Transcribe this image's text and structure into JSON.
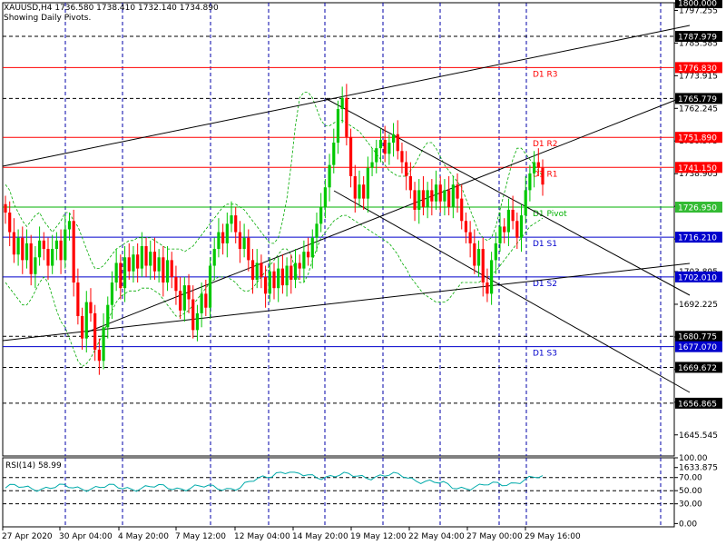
{
  "header": {
    "symbol_line": "XAUUSD,H4  1736.580 1738.410 1732.140 1734.890",
    "pivots_note": "Showing Daily Pivots."
  },
  "colors": {
    "bull": "#00c800",
    "bear": "#ff0000",
    "resistance": "#ff0000",
    "pivot": "#00b000",
    "support": "#0000cc",
    "grid": "#0000aa",
    "bands": "#00aa00",
    "rsi": "#00aaaa"
  },
  "chart_data": {
    "type": "candlestick",
    "price_axis": {
      "range": [
        1638,
        1800
      ],
      "ticks": [
        "1800.000",
        "1797.255",
        "1785.585",
        "1773.915",
        "1762.245",
        "1750.575",
        "1738.905",
        "1727.235",
        "1715.565",
        "1703.895",
        "1692.225",
        "1680.555",
        "1668.885",
        "1657.215",
        "1645.545",
        "1633.875"
      ],
      "tick_values": [
        1800.0,
        1797.255,
        1785.585,
        1773.915,
        1762.245,
        1750.575,
        1738.905,
        1727.235,
        1715.565,
        1703.895,
        1692.225,
        1680.555,
        1668.885,
        1657.215,
        1645.545,
        1633.875
      ]
    },
    "time_axis": {
      "labels": [
        "27 Apr 2020",
        "30 Apr 04:00",
        "4 May 20:00",
        "7 May 12:00",
        "12 May 04:00",
        "14 May 20:00",
        "19 May 12:00",
        "22 May 04:00",
        "27 May 00:00",
        "29 May 16:00"
      ]
    },
    "pivot_levels": [
      {
        "name": "D1 R3",
        "value": "1776.830",
        "kind": "resistance"
      },
      {
        "name": "D1 R2",
        "value": "1751.890",
        "kind": "resistance"
      },
      {
        "name": "D1 R1",
        "value": "1741.150",
        "kind": "resistance"
      },
      {
        "name": "D1 Pivot",
        "value": "1726.950",
        "kind": "pivot"
      },
      {
        "name": "D1 S1",
        "value": "1716.210",
        "kind": "support"
      },
      {
        "name": "D1 S2",
        "value": "1702.010",
        "kind": "support"
      },
      {
        "name": "D1 S3",
        "value": "1677.070",
        "kind": "support"
      }
    ],
    "horizontal_levels": [
      "1800.000",
      "1787.979",
      "1765.779",
      "1680.775",
      "1669.672",
      "1656.865"
    ],
    "closes": [
      1725,
      1718,
      1710,
      1716,
      1708,
      1714,
      1703,
      1709,
      1715,
      1712,
      1706,
      1712,
      1715,
      1708,
      1719,
      1722,
      1700,
      1688,
      1680,
      1693,
      1689,
      1676,
      1672,
      1684,
      1692,
      1700,
      1707,
      1698,
      1709,
      1704,
      1710,
      1705,
      1713,
      1706,
      1711,
      1704,
      1709,
      1700,
      1708,
      1702,
      1697,
      1690,
      1699,
      1694,
      1683,
      1689,
      1696,
      1691,
      1706,
      1712,
      1718,
      1714,
      1721,
      1724,
      1718,
      1712,
      1716,
      1708,
      1701,
      1707,
      1702,
      1696,
      1704,
      1698,
      1705,
      1699,
      1706,
      1701,
      1707,
      1705,
      1711,
      1709,
      1716,
      1721,
      1727,
      1734,
      1742,
      1750,
      1762,
      1766,
      1752,
      1738,
      1730,
      1735,
      1730,
      1741,
      1743,
      1748,
      1751,
      1746,
      1750,
      1753,
      1747,
      1743,
      1738,
      1733,
      1726,
      1733,
      1727,
      1733,
      1729,
      1735,
      1729,
      1733,
      1727,
      1735,
      1730,
      1722,
      1718,
      1714,
      1706,
      1712,
      1700,
      1696,
      1708,
      1714,
      1720,
      1718,
      1726,
      1722,
      1716,
      1724,
      1733,
      1739,
      1743,
      1741,
      1735
    ],
    "bands": {
      "upper": [
        1735,
        1733,
        1728,
        1725,
        1722,
        1720,
        1722,
        1724,
        1725,
        1722,
        1720,
        1718,
        1720,
        1722,
        1725,
        1725,
        1722,
        1720,
        1716,
        1712,
        1708,
        1705,
        1705,
        1706,
        1708,
        1710,
        1712,
        1713,
        1714,
        1715,
        1715,
        1716,
        1716,
        1716,
        1716,
        1715,
        1714,
        1713,
        1712,
        1712,
        1712,
        1712,
        1711,
        1712,
        1713,
        1715,
        1717,
        1719,
        1721,
        1723,
        1725,
        1727,
        1728,
        1728,
        1728,
        1727,
        1726,
        1724,
        1722,
        1720,
        1718,
        1716,
        1714,
        1714,
        1716,
        1722,
        1730,
        1742,
        1756,
        1766,
        1768,
        1768,
        1766,
        1762,
        1758,
        1756,
        1756,
        1757,
        1758,
        1758,
        1757,
        1756,
        1755,
        1754,
        1752,
        1750,
        1748,
        1746,
        1744,
        1742,
        1740,
        1739,
        1738,
        1738,
        1738,
        1740,
        1742,
        1745,
        1748,
        1750,
        1750,
        1748,
        1745,
        1742,
        1740,
        1738,
        1736,
        1734,
        1730,
        1726,
        1722,
        1718,
        1716,
        1715,
        1716,
        1720,
        1726,
        1732,
        1738,
        1744,
        1748,
        1748,
        1746,
        1744,
        1742,
        1740,
        1738
      ],
      "lower": [
        1700,
        1698,
        1696,
        1694,
        1692,
        1692,
        1694,
        1697,
        1700,
        1702,
        1700,
        1695,
        1690,
        1686,
        1684,
        1680,
        1676,
        1672,
        1670,
        1671,
        1673,
        1676,
        1679,
        1682,
        1686,
        1690,
        1693,
        1695,
        1696,
        1697,
        1697,
        1697,
        1698,
        1698,
        1698,
        1697,
        1696,
        1694,
        1692,
        1690,
        1688,
        1688,
        1689,
        1690,
        1692,
        1694,
        1696,
        1698,
        1700,
        1701,
        1702,
        1702,
        1702,
        1701,
        1700,
        1698,
        1697,
        1697,
        1698,
        1700,
        1702,
        1704,
        1706,
        1708,
        1710,
        1712,
        1712,
        1710,
        1704,
        1700,
        1700,
        1703,
        1708,
        1712,
        1716,
        1718,
        1720,
        1722,
        1723,
        1724,
        1724,
        1723,
        1722,
        1721,
        1720,
        1719,
        1718,
        1717,
        1716,
        1715,
        1714,
        1712,
        1710,
        1707,
        1705,
        1702,
        1700,
        1698,
        1696,
        1695,
        1694,
        1693,
        1693,
        1693,
        1694,
        1696,
        1698,
        1700,
        1700,
        1700,
        1700,
        1700,
        1701,
        1702,
        1703,
        1704,
        1706,
        1708,
        1710,
        1712,
        1714,
        1716,
        1718,
        1720,
        1721,
        1722,
        1723
      ]
    },
    "rsi": {
      "label": "RSI(14) 58.99",
      "ticks": [
        "100.00",
        "70.00",
        "50.00",
        "30.00",
        "0.00"
      ],
      "tick_values": [
        100,
        70,
        50,
        30,
        0
      ],
      "range": [
        -5,
        100
      ]
    }
  }
}
